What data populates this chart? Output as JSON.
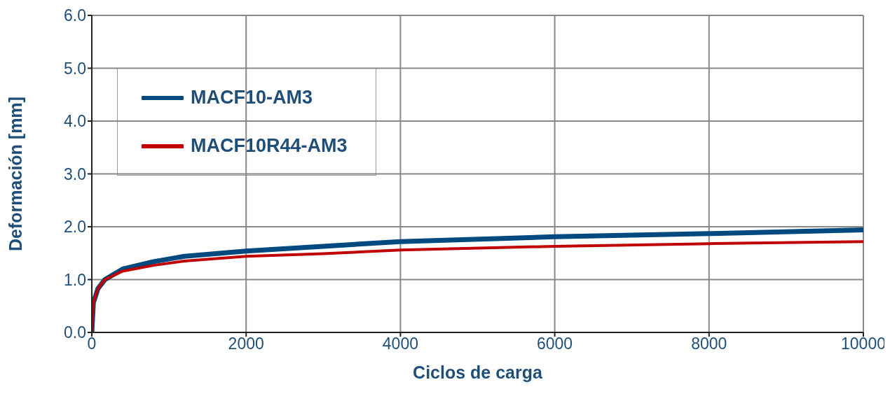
{
  "chart_data": {
    "type": "line",
    "xlabel": "Ciclos de carga",
    "ylabel": "Deformación [mm]",
    "x": [
      0,
      20,
      80,
      170,
      400,
      800,
      1200,
      2000,
      3000,
      4000,
      6000,
      8000,
      10000
    ],
    "series": [
      {
        "name": "MACF10-AM3",
        "color": "#004a80",
        "values": [
          0,
          0.56,
          0.83,
          1.0,
          1.2,
          1.34,
          1.44,
          1.54,
          1.63,
          1.72,
          1.81,
          1.87,
          1.94
        ]
      },
      {
        "name": "MACF10R44-AM3",
        "color": "#c00000",
        "values": [
          0,
          0.56,
          0.83,
          1.0,
          1.16,
          1.27,
          1.35,
          1.44,
          1.49,
          1.56,
          1.63,
          1.68,
          1.72
        ]
      }
    ],
    "xlim": [
      0,
      10000
    ],
    "xticks": [
      0,
      2000,
      4000,
      6000,
      8000,
      10000
    ],
    "ylim": [
      0,
      6
    ],
    "yticks": [
      {
        "value": 0,
        "label": "0.0"
      },
      {
        "value": 1,
        "label": "1.0"
      },
      {
        "value": 2,
        "label": "2.0"
      },
      {
        "value": 3,
        "label": "3.0"
      },
      {
        "value": 4,
        "label": "4.0"
      },
      {
        "value": 5,
        "label": "5.0"
      },
      {
        "value": 6,
        "label": "6.0"
      }
    ],
    "grid": true,
    "legend": "top left",
    "marker": "none",
    "line_style": "solid"
  }
}
